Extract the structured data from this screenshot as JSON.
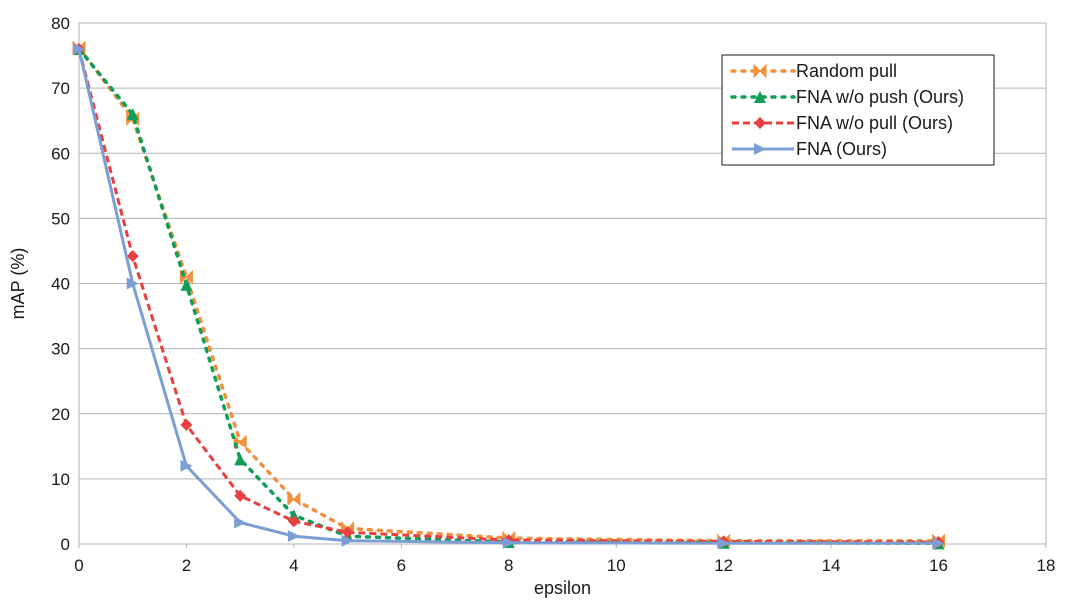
{
  "chart_data": {
    "type": "line",
    "title": "",
    "xlabel": "epsilon",
    "ylabel": "mAP (%)",
    "xlim": [
      0,
      18
    ],
    "ylim": [
      0,
      80
    ],
    "xticks": [
      "0",
      "2",
      "4",
      "6",
      "8",
      "10",
      "12",
      "14",
      "16",
      "18"
    ],
    "yticks": [
      "0",
      "10",
      "20",
      "30",
      "40",
      "50",
      "60",
      "70",
      "80"
    ],
    "grid": "horizontal",
    "legend_position": "top-right",
    "series": [
      {
        "name": "Random pull",
        "color": "#f0913e",
        "line_style": "dotted",
        "marker": "bowtie",
        "x": [
          0,
          1,
          2,
          3,
          4,
          5,
          8,
          12,
          16
        ],
        "y": [
          76.2,
          65.3,
          41.0,
          15.7,
          6.9,
          2.4,
          0.9,
          0.5,
          0.5
        ]
      },
      {
        "name": "FNA w/o push (Ours)",
        "color": "#0f9d58",
        "line_style": "dotted",
        "marker": "triangle-up",
        "x": [
          0,
          1,
          2,
          3,
          4,
          5,
          8,
          12,
          16
        ],
        "y": [
          76.0,
          66.0,
          39.8,
          13.0,
          4.4,
          1.2,
          0.3,
          0.2,
          0.1
        ]
      },
      {
        "name": "FNA w/o pull (Ours)",
        "color": "#e84040",
        "line_style": "dashed",
        "marker": "diamond",
        "x": [
          0,
          1,
          2,
          3,
          4,
          5,
          8,
          12,
          16
        ],
        "y": [
          76.0,
          44.2,
          18.3,
          7.4,
          3.5,
          1.8,
          0.6,
          0.4,
          0.3
        ]
      },
      {
        "name": "FNA (Ours)",
        "color": "#7b9fd4",
        "line_style": "solid",
        "marker": "triangle-right",
        "x": [
          0,
          1,
          2,
          3,
          4,
          5,
          8,
          12,
          16
        ],
        "y": [
          76.0,
          40.0,
          12.0,
          3.3,
          1.2,
          0.5,
          0.2,
          0.1,
          0.1
        ]
      }
    ]
  }
}
